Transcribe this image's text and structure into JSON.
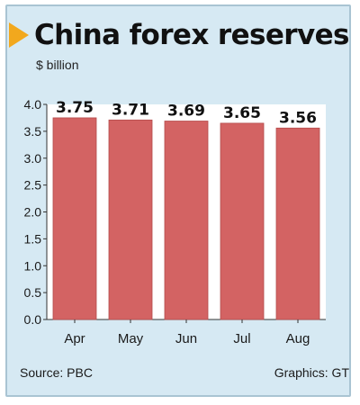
{
  "chart_data": {
    "type": "bar",
    "title": "China forex reserves",
    "ylabel": "$ billion",
    "categories": [
      "Apr",
      "May",
      "Jun",
      "Jul",
      "Aug"
    ],
    "values": [
      3.75,
      3.71,
      3.69,
      3.65,
      3.56
    ],
    "data_labels": [
      "3.75",
      "3.71",
      "3.69",
      "3.65",
      "3.56"
    ],
    "ylim": [
      0,
      4.0
    ],
    "yticks": [
      "0.0",
      "0.5",
      "1.0",
      "1.5",
      "2.0",
      "2.5",
      "3.0",
      "3.5",
      "4.0"
    ],
    "grid": false,
    "legend": "none",
    "colors": {
      "bar": "#d36363",
      "bar_stroke": "#b44b4b",
      "plot_bg": "#ffffff",
      "card_bg": "#d6e9f3",
      "accent_arrow": "#f2a81d"
    }
  },
  "footer": {
    "source": "Source: PBC",
    "credit": "Graphics: GT"
  },
  "decor": {
    "title_marker_icon": "triangle-arrow-icon"
  }
}
